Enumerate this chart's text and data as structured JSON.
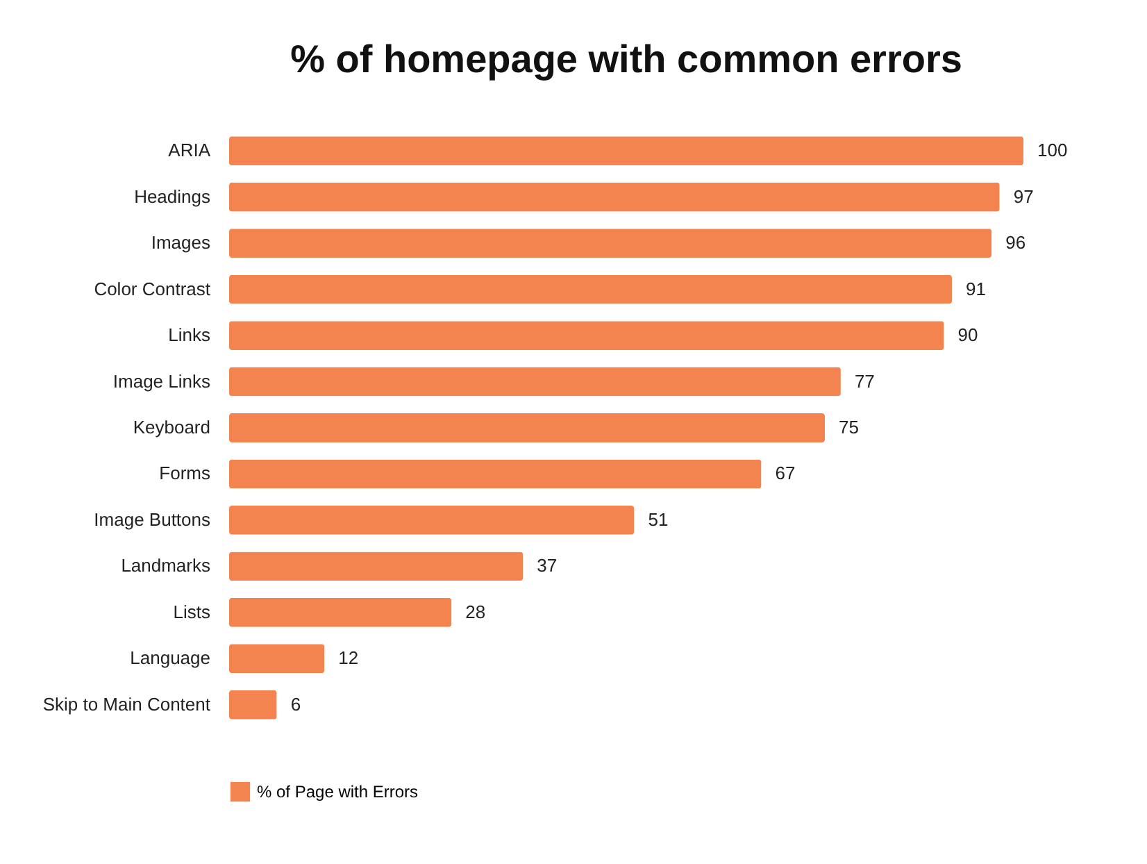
{
  "chart_data": {
    "type": "bar",
    "orientation": "horizontal",
    "title": "% of homepage with common errors",
    "categories": [
      "ARIA",
      "Headings",
      "Images",
      "Color Contrast",
      "Links",
      "Image Links",
      "Keyboard",
      "Forms",
      "Image Buttons",
      "Landmarks",
      "Lists",
      "Language",
      "Skip to Main Content"
    ],
    "series": [
      {
        "name": "% of Page with Errors",
        "color": "#f4844f",
        "values": [
          100,
          97,
          96,
          91,
          90,
          77,
          75,
          67,
          51,
          37,
          28,
          12,
          6
        ]
      }
    ],
    "data_labels": true,
    "legend": "bottom left",
    "tick_labels": "y"
  }
}
